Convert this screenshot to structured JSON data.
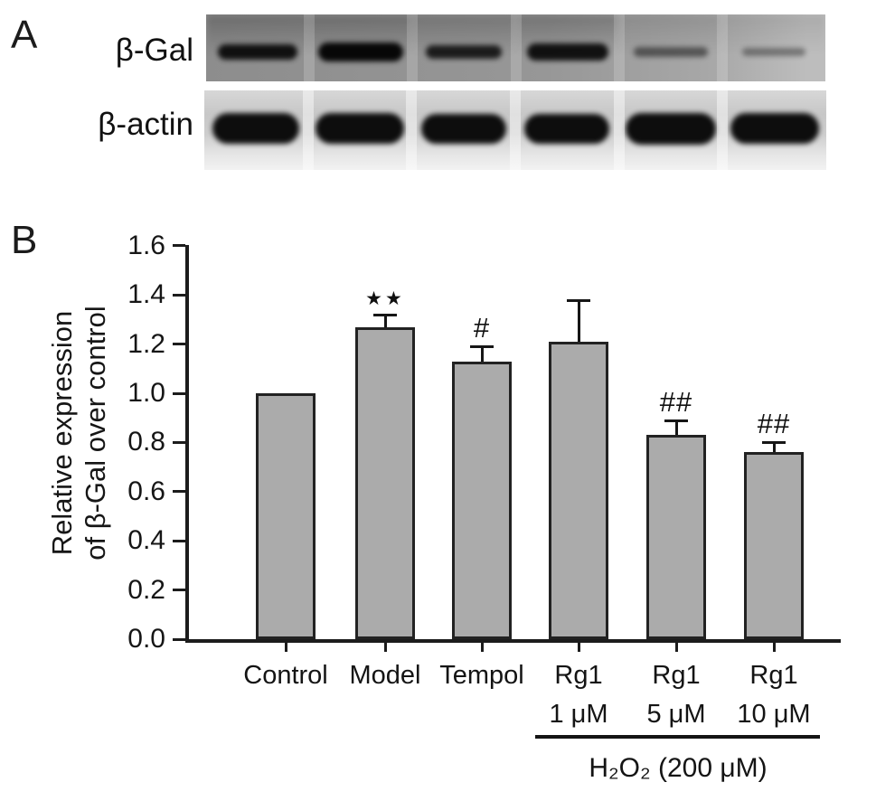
{
  "panels": {
    "a": {
      "label": "A",
      "num_lanes": 6,
      "blot_rows": [
        {
          "label": "β-Gal",
          "band_intensities": [
            0.93,
            1.0,
            0.85,
            0.93,
            0.5,
            0.38
          ]
        },
        {
          "label": "β-actin",
          "band_intensities": [
            0.97,
            0.97,
            0.97,
            0.97,
            0.97,
            0.97
          ]
        }
      ]
    },
    "b": {
      "label": "B"
    }
  },
  "chart_data": {
    "type": "bar",
    "title": "",
    "xlabel": "",
    "ylabel_line1": "Relative expression",
    "ylabel_line2": "of β-Gal over control",
    "ylim": [
      0.0,
      1.6
    ],
    "yticks": [
      "0.0",
      "0.2",
      "0.4",
      "0.6",
      "0.8",
      "1.0",
      "1.2",
      "1.4",
      "1.6"
    ],
    "categories": [
      "Control",
      "Model",
      "Tempol",
      "Rg1",
      "Rg1",
      "Rg1"
    ],
    "category_sublabels": [
      "",
      "",
      "",
      "1 μM",
      "5 μM",
      "10 μM"
    ],
    "values": [
      1.0,
      1.27,
      1.13,
      1.21,
      0.83,
      0.76
    ],
    "errors_plus": [
      0,
      0.05,
      0.06,
      0.17,
      0.06,
      0.04
    ],
    "significance": [
      "",
      "★★",
      "#",
      "",
      "##",
      "##"
    ],
    "bar_fill": "#ababab",
    "bar_border": "#222222",
    "grid": "off",
    "legend": "none",
    "group_annotation": {
      "label": "H₂O₂ (200 μM)",
      "applies_to_categories": [
        "Rg1 1 μM",
        "Rg1 5 μM",
        "Rg1 10 μM"
      ],
      "span_indices": [
        3,
        5
      ]
    }
  }
}
